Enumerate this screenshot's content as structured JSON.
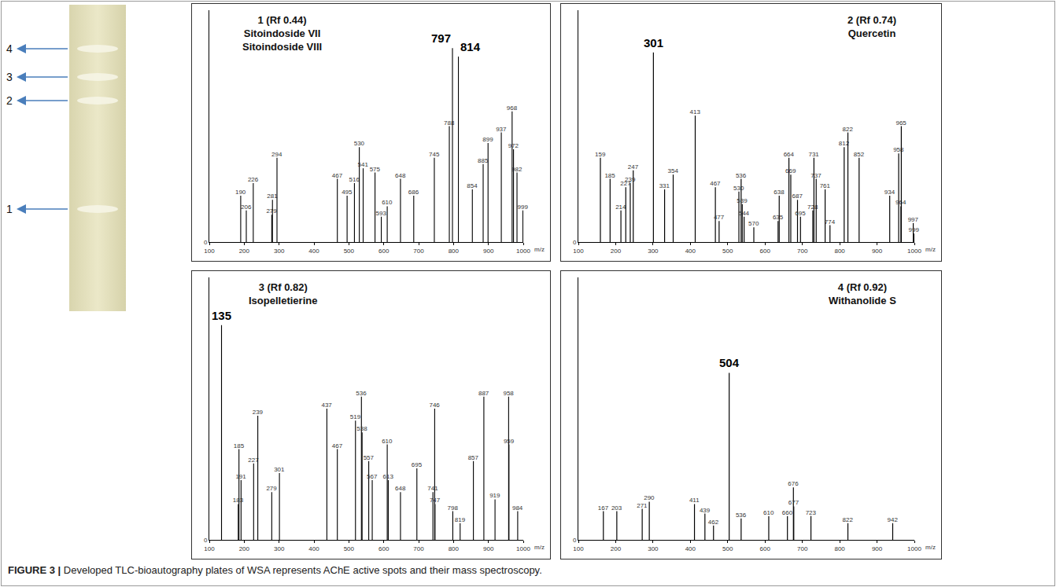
{
  "plate": {
    "spots": [
      "4",
      "3",
      "2",
      "1"
    ]
  },
  "chart_data": [
    {
      "type": "bar",
      "title": "1 (Rf 0.44)",
      "compounds": [
        "Sitoindoside VII",
        "Sitoindoside VIII"
      ],
      "x_label": "m/z",
      "color": "#000000",
      "grid": false,
      "x": [
        190,
        206,
        226,
        279,
        281,
        294,
        467,
        495,
        516,
        530,
        541,
        575,
        593,
        610,
        648,
        686,
        745,
        788,
        797,
        814,
        854,
        885,
        899,
        937,
        968,
        972,
        982,
        999
      ],
      "values": [
        22,
        15,
        28,
        13,
        20,
        40,
        30,
        22,
        28,
        45,
        35,
        33,
        12,
        17,
        30,
        22,
        40,
        55,
        92,
        88,
        25,
        37,
        47,
        52,
        62,
        44,
        33,
        15
      ],
      "labels": [
        "190",
        "206",
        "226",
        "279",
        "281",
        "294",
        "467",
        "495",
        "516",
        "530",
        "541",
        "575",
        "593",
        "610",
        "648",
        "686",
        "745",
        "788",
        null,
        null,
        "854",
        "885",
        "899",
        "937",
        "968",
        "972",
        "982",
        "999"
      ],
      "annotations": [
        {
          "text": "797",
          "x": 797
        },
        {
          "text": "814",
          "x": 814
        }
      ],
      "xlim": [
        100,
        1000
      ],
      "xticks": [
        100,
        200,
        300,
        400,
        500,
        600,
        700,
        800,
        900,
        1000
      ],
      "ylim": [
        0,
        110
      ],
      "yticks": [
        0
      ]
    },
    {
      "type": "bar",
      "title": "2 (Rf 0.74)",
      "compounds": [
        "Quercetin"
      ],
      "x_label": "m/z",
      "color": "#000000",
      "grid": false,
      "x": [
        159,
        185,
        214,
        227,
        239,
        247,
        301,
        331,
        354,
        413,
        467,
        477,
        530,
        536,
        539,
        544,
        570,
        635,
        638,
        664,
        669,
        687,
        695,
        728,
        731,
        737,
        761,
        774,
        812,
        822,
        852,
        934,
        958,
        964,
        965,
        997,
        999
      ],
      "values": [
        40,
        30,
        15,
        26,
        28,
        34,
        90,
        25,
        32,
        60,
        26,
        10,
        24,
        30,
        18,
        12,
        7,
        10,
        22,
        40,
        32,
        20,
        12,
        15,
        40,
        30,
        25,
        8,
        45,
        52,
        40,
        22,
        42,
        17,
        55,
        9,
        4
      ],
      "labels": [
        "159",
        "185",
        "214",
        "227",
        "239",
        "247",
        null,
        "331",
        "354",
        "413",
        "467",
        "477",
        "530",
        "536",
        "539",
        "544",
        "570",
        "635",
        "638",
        "664",
        "669",
        "687",
        "695",
        "728",
        "731",
        "737",
        "761",
        "774",
        "812",
        "822",
        "852",
        "934",
        "958",
        "964",
        "965",
        "997",
        "999"
      ],
      "annotations": [
        {
          "text": "301",
          "x": 301
        }
      ],
      "xlim": [
        100,
        1000
      ],
      "xticks": [
        100,
        200,
        300,
        400,
        500,
        600,
        700,
        800,
        900,
        1000
      ],
      "ylim": [
        0,
        110
      ],
      "yticks": [
        0
      ]
    },
    {
      "type": "bar",
      "title": "3 (Rf 0.82)",
      "compounds": [
        "Isopelletierine"
      ],
      "x_label": "m/z",
      "color": "#000000",
      "grid": false,
      "x": [
        135,
        183,
        185,
        191,
        227,
        239,
        279,
        301,
        437,
        467,
        519,
        536,
        538,
        557,
        567,
        610,
        613,
        648,
        695,
        741,
        746,
        747,
        798,
        819,
        857,
        887,
        919,
        958,
        959,
        984
      ],
      "values": [
        90,
        15,
        38,
        25,
        32,
        52,
        20,
        28,
        55,
        38,
        50,
        60,
        45,
        33,
        25,
        40,
        25,
        20,
        30,
        20,
        55,
        15,
        12,
        7,
        33,
        60,
        17,
        60,
        40,
        12
      ],
      "labels": [
        null,
        "183",
        "185",
        "191",
        "227",
        "239",
        "279",
        "301",
        "437",
        "467",
        "519",
        "536",
        "538",
        "557",
        "567",
        "610",
        "613",
        "648",
        "695",
        "741",
        "746",
        "747",
        "798",
        "819",
        "857",
        "887",
        "919",
        "958",
        "959",
        "984"
      ],
      "annotations": [
        {
          "text": "135",
          "x": 135
        }
      ],
      "xlim": [
        100,
        1000
      ],
      "xticks": [
        100,
        200,
        300,
        400,
        500,
        600,
        700,
        800,
        900,
        1000
      ],
      "ylim": [
        0,
        110
      ],
      "yticks": [
        0
      ]
    },
    {
      "type": "bar",
      "title": "4 (Rf 0.92)",
      "compounds": [
        "Withanolide S"
      ],
      "x_label": "m/z",
      "color": "#000000",
      "grid": false,
      "x": [
        167,
        203,
        271,
        290,
        411,
        439,
        462,
        504,
        536,
        610,
        660,
        676,
        677,
        723,
        822,
        942
      ],
      "values": [
        12,
        12,
        13,
        16,
        15,
        11,
        6,
        70,
        9,
        10,
        10,
        22,
        14,
        10,
        7,
        7
      ],
      "labels": [
        "167",
        "203",
        "271",
        "290",
        "411",
        "439",
        "462",
        null,
        "536",
        "610",
        "660",
        "676",
        "677",
        "723",
        "822",
        "942"
      ],
      "annotations": [
        {
          "text": "504",
          "x": 504
        }
      ],
      "xlim": [
        100,
        1000
      ],
      "xticks": [
        100,
        200,
        300,
        400,
        500,
        600,
        700,
        800,
        900,
        1000
      ],
      "ylim": [
        0,
        110
      ],
      "yticks": [
        0
      ]
    }
  ],
  "caption": {
    "label": "FIGURE 3 |",
    "text": "Developed TLC-bioautography plates of WSA represents AChE active spots and their mass spectroscopy."
  }
}
